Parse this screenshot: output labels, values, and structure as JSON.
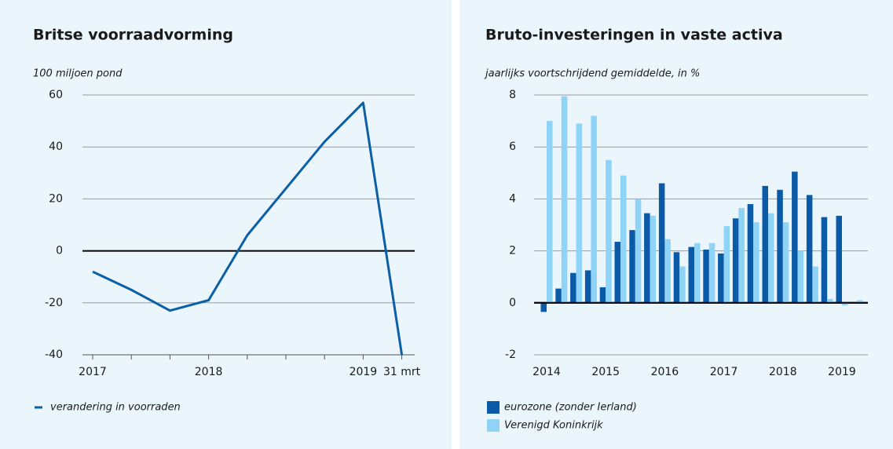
{
  "chart_data": [
    {
      "type": "line",
      "title": "Britse voorraadvorming",
      "subtitle": "100 miljoen pond",
      "categories": [
        "2017",
        null,
        null,
        "2018",
        null,
        null,
        null,
        "2019",
        "31 mrt"
      ],
      "series": [
        {
          "name": "verandering in voorraden",
          "color": "#0b5fa5",
          "values": [
            -8,
            -15,
            -23,
            -19,
            6,
            24,
            42,
            57,
            -40
          ]
        }
      ],
      "ylim": [
        -40,
        60
      ],
      "yticks": [
        -40,
        -20,
        0,
        20,
        40,
        60
      ],
      "grid": true
    },
    {
      "type": "bar",
      "title": "Bruto-investeringen in vaste activa",
      "subtitle": "jaarlijks voortschrijdend gemiddelde, in %",
      "categories": [
        "2014",
        null,
        null,
        null,
        "2015",
        null,
        null,
        null,
        "2016",
        null,
        null,
        null,
        "2017",
        null,
        null,
        null,
        "2018",
        null,
        null,
        null,
        "2019",
        null
      ],
      "series": [
        {
          "name": "eurozone (zonder Ierland)",
          "color": "#0a5aa8",
          "values": [
            -0.35,
            0.55,
            1.15,
            1.25,
            0.6,
            2.35,
            2.8,
            3.45,
            4.6,
            1.95,
            2.15,
            2.05,
            1.9,
            3.25,
            3.8,
            4.5,
            4.35,
            5.05,
            4.15,
            3.3,
            3.35,
            null
          ]
        },
        {
          "name": "Verenigd Koninkrijk",
          "color": "#8fd3f7",
          "values": [
            7.0,
            7.95,
            6.9,
            7.2,
            5.5,
            4.9,
            4.0,
            3.35,
            2.45,
            1.4,
            2.3,
            2.3,
            2.95,
            3.65,
            3.1,
            3.45,
            3.1,
            2.0,
            1.4,
            0.15,
            -0.1,
            0.1
          ]
        }
      ],
      "ylim": [
        -2,
        8
      ],
      "yticks": [
        -2,
        0,
        2,
        4,
        6,
        8
      ],
      "grid": true
    }
  ]
}
